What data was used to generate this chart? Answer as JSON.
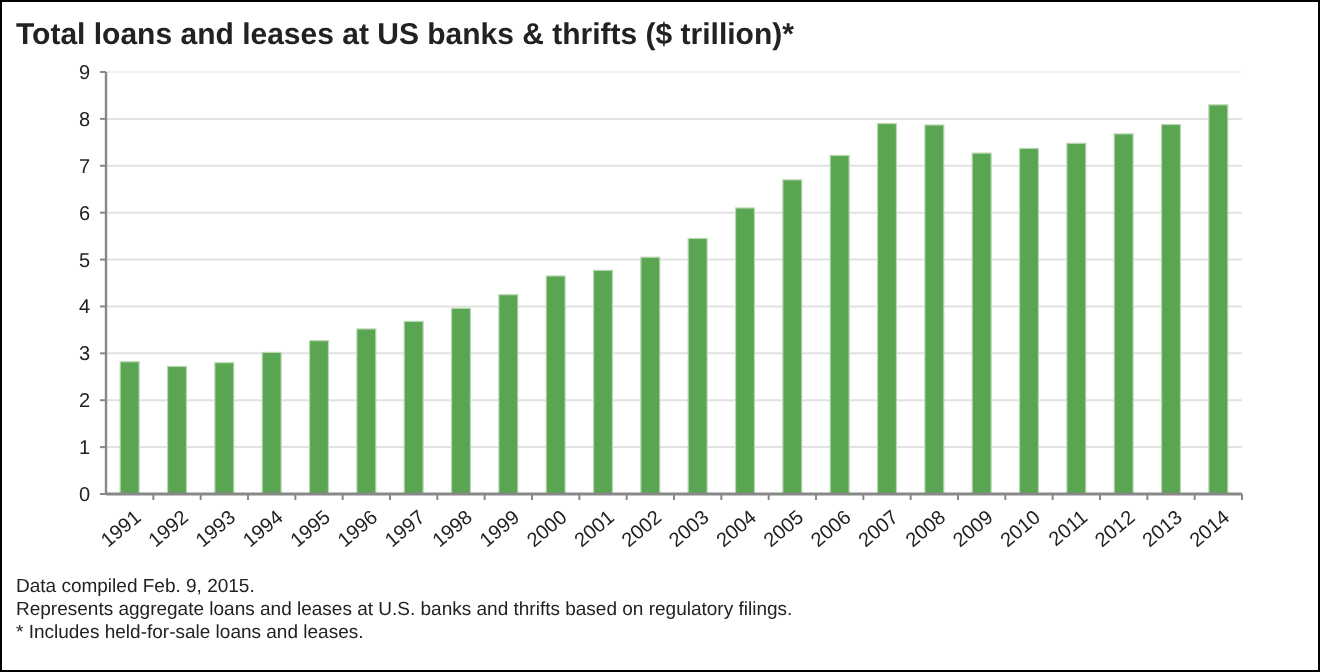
{
  "chart_data": {
    "type": "bar",
    "title": "Total loans and leases at US banks & thrifts ($ trillion)*",
    "categories": [
      "1991",
      "1992",
      "1993",
      "1994",
      "1995",
      "1996",
      "1997",
      "1998",
      "1999",
      "2000",
      "2001",
      "2002",
      "2003",
      "2004",
      "2005",
      "2006",
      "2007",
      "2008",
      "2009",
      "2010",
      "2011",
      "2012",
      "2013",
      "2014"
    ],
    "values": [
      2.82,
      2.72,
      2.8,
      3.02,
      3.27,
      3.52,
      3.68,
      3.96,
      4.25,
      4.65,
      4.77,
      5.05,
      5.45,
      6.1,
      6.7,
      7.22,
      7.9,
      7.87,
      7.27,
      7.37,
      7.48,
      7.68,
      7.88,
      8.3
    ],
    "color": "#5aa552",
    "ylim": [
      0,
      9
    ],
    "yticks": [
      0,
      1,
      2,
      3,
      4,
      5,
      6,
      7,
      8,
      9
    ],
    "grid": "y",
    "annotations": [
      "Data compiled Feb. 9, 2015.",
      "Represents aggregate loans and leases at U.S. banks and thrifts based on regulatory filings.",
      "* Includes held-for-sale loans and leases."
    ]
  }
}
